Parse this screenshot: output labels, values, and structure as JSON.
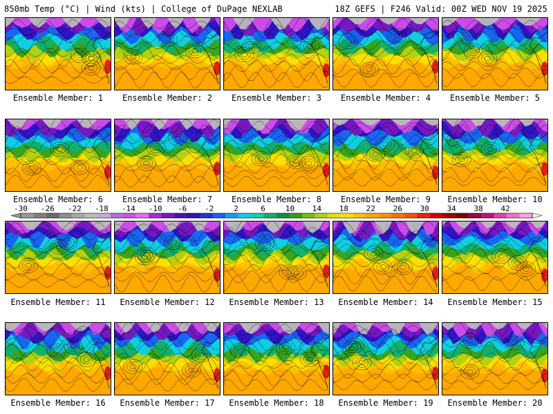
{
  "header": {
    "left": "850mb Temp (°C) | Wind (kts) | College of DuPage NEXLAB",
    "right": "18Z GEFS | F246 Valid: 00Z WED NOV 19 2025"
  },
  "member_label_prefix": "Ensemble Member: ",
  "members": [
    {
      "label": "Ensemble Member: 1"
    },
    {
      "label": "Ensemble Member: 2"
    },
    {
      "label": "Ensemble Member: 3"
    },
    {
      "label": "Ensemble Member: 4"
    },
    {
      "label": "Ensemble Member: 5"
    },
    {
      "label": "Ensemble Member: 6"
    },
    {
      "label": "Ensemble Member: 7"
    },
    {
      "label": "Ensemble Member: 8"
    },
    {
      "label": "Ensemble Member: 9"
    },
    {
      "label": "Ensemble Member: 10"
    },
    {
      "label": "Ensemble Member: 11"
    },
    {
      "label": "Ensemble Member: 12"
    },
    {
      "label": "Ensemble Member: 13"
    },
    {
      "label": "Ensemble Member: 14"
    },
    {
      "label": "Ensemble Member: 15"
    },
    {
      "label": "Ensemble Member: 16"
    },
    {
      "label": "Ensemble Member: 17"
    },
    {
      "label": "Ensemble Member: 18"
    },
    {
      "label": "Ensemble Member: 19"
    },
    {
      "label": "Ensemble Member: 20"
    }
  ],
  "colorbar": {
    "min": -30,
    "max": 46,
    "step": 2,
    "tick_labels": [
      "-30",
      "-26",
      "-22",
      "-18",
      "-14",
      "-10",
      "-6",
      "-2",
      "2",
      "6",
      "10",
      "14",
      "18",
      "22",
      "26",
      "30",
      "34",
      "38",
      "42"
    ],
    "colors": [
      "#9a9a9a",
      "#7f7f7f",
      "#6a6a6a",
      "#8f8f8f",
      "#a8a8a8",
      "#bbbbbb",
      "#c8a8d8",
      "#b070d8",
      "#d050e8",
      "#e070f0",
      "#a030d0",
      "#7818c0",
      "#5010b0",
      "#3010c0",
      "#2030d8",
      "#1860f0",
      "#10a0f0",
      "#10d0e8",
      "#10d0b0",
      "#10b070",
      "#109040",
      "#30a020",
      "#70c010",
      "#b0d010",
      "#e0e010",
      "#ffe000",
      "#ffc000",
      "#ffa800",
      "#ff9000",
      "#ff7000",
      "#ff5000",
      "#f02010",
      "#d00000",
      "#a00000",
      "#800000",
      "#a00050",
      "#c01080",
      "#e040b0",
      "#f070d0",
      "#f8a0e0"
    ]
  }
}
